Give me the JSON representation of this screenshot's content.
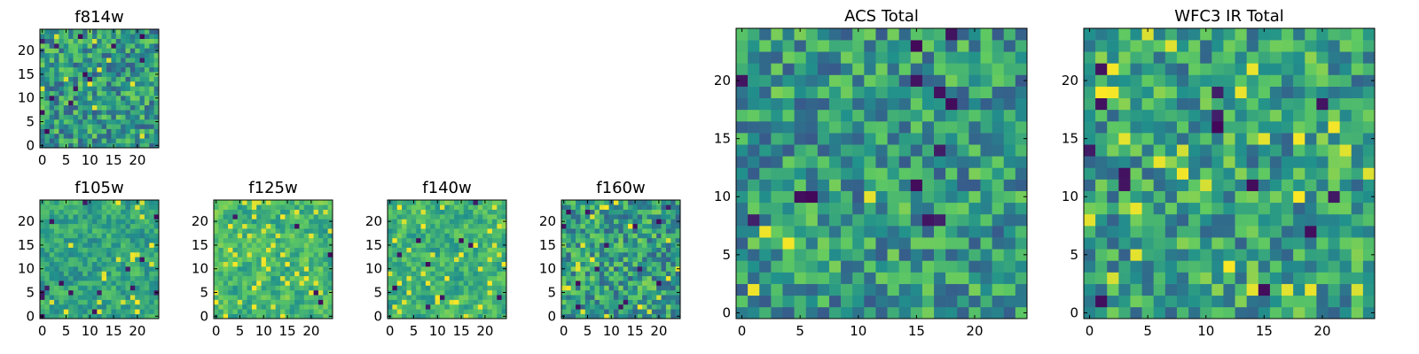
{
  "chart_data": [
    {
      "type": "heatmap",
      "title": "f814w",
      "xticks": [
        0,
        5,
        10,
        15,
        20
      ],
      "yticks": [
        0,
        5,
        10,
        15,
        20
      ],
      "grid_size": [
        25,
        25
      ],
      "xlim": [
        -0.5,
        24.5
      ],
      "ylim": [
        -0.5,
        24.5
      ],
      "colormap": "viridis",
      "colors": [
        "#440154",
        "#3b528b",
        "#21918c",
        "#5ec962",
        "#fde725"
      ],
      "seed": 11,
      "smooth": 0,
      "dark_fraction": 0.03,
      "bright_fraction": 0.02,
      "bias": 0.0
    },
    {
      "type": "heatmap",
      "title": "f105w",
      "xticks": [
        0,
        5,
        10,
        15,
        20
      ],
      "yticks": [
        0,
        5,
        10,
        15,
        20
      ],
      "grid_size": [
        25,
        25
      ],
      "xlim": [
        -0.5,
        24.5
      ],
      "ylim": [
        -0.5,
        24.5
      ],
      "colormap": "viridis",
      "colors": [
        "#440154",
        "#3b528b",
        "#21918c",
        "#5ec962",
        "#fde725"
      ],
      "seed": 23,
      "smooth": 1,
      "dark_fraction": 0.02,
      "bright_fraction": 0.04,
      "bias": 0.05
    },
    {
      "type": "heatmap",
      "title": "f125w",
      "xticks": [
        0,
        5,
        10,
        15,
        20
      ],
      "yticks": [
        0,
        5,
        10,
        15,
        20
      ],
      "grid_size": [
        25,
        25
      ],
      "xlim": [
        -0.5,
        24.5
      ],
      "ylim": [
        -0.5,
        24.5
      ],
      "colormap": "viridis",
      "colors": [
        "#440154",
        "#3b528b",
        "#21918c",
        "#5ec962",
        "#fde725"
      ],
      "seed": 37,
      "smooth": 1,
      "dark_fraction": 0.01,
      "bright_fraction": 0.08,
      "bias": 0.12
    },
    {
      "type": "heatmap",
      "title": "f140w",
      "xticks": [
        0,
        5,
        10,
        15,
        20
      ],
      "yticks": [
        0,
        5,
        10,
        15,
        20
      ],
      "grid_size": [
        25,
        25
      ],
      "xlim": [
        -0.5,
        24.5
      ],
      "ylim": [
        -0.5,
        24.5
      ],
      "colormap": "viridis",
      "colors": [
        "#440154",
        "#3b528b",
        "#21918c",
        "#5ec962",
        "#fde725"
      ],
      "seed": 41,
      "smooth": 1,
      "dark_fraction": 0.01,
      "bright_fraction": 0.06,
      "bias": 0.1
    },
    {
      "type": "heatmap",
      "title": "f160w",
      "xticks": [
        0,
        5,
        10,
        15,
        20
      ],
      "yticks": [
        0,
        5,
        10,
        15,
        20
      ],
      "grid_size": [
        25,
        25
      ],
      "xlim": [
        -0.5,
        24.5
      ],
      "ylim": [
        -0.5,
        24.5
      ],
      "colormap": "viridis",
      "colors": [
        "#440154",
        "#3b528b",
        "#21918c",
        "#5ec962",
        "#fde725"
      ],
      "seed": 53,
      "smooth": 0,
      "dark_fraction": 0.03,
      "bright_fraction": 0.03,
      "bias": 0.02
    },
    {
      "type": "heatmap",
      "title": "ACS Total",
      "xticks": [
        0,
        5,
        10,
        15,
        20
      ],
      "yticks": [
        0,
        5,
        10,
        15,
        20
      ],
      "grid_size": [
        25,
        25
      ],
      "xlim": [
        -0.5,
        24.5
      ],
      "ylim": [
        -0.5,
        24.5
      ],
      "colormap": "viridis",
      "colors": [
        "#440154",
        "#3b528b",
        "#21918c",
        "#5ec962",
        "#fde725"
      ],
      "seed": 67,
      "smooth": 0,
      "dark_fraction": 0.02,
      "bright_fraction": 0.01,
      "bias": 0.0
    },
    {
      "type": "heatmap",
      "title": "WFC3 IR Total",
      "xticks": [
        0,
        5,
        10,
        15,
        20
      ],
      "yticks": [
        0,
        5,
        10,
        15,
        20
      ],
      "grid_size": [
        25,
        25
      ],
      "xlim": [
        -0.5,
        24.5
      ],
      "ylim": [
        -0.5,
        24.5
      ],
      "colormap": "viridis",
      "colors": [
        "#440154",
        "#3b528b",
        "#21918c",
        "#5ec962",
        "#fde725"
      ],
      "seed": 79,
      "smooth": 0,
      "dark_fraction": 0.03,
      "bright_fraction": 0.03,
      "bias": 0.03
    }
  ]
}
